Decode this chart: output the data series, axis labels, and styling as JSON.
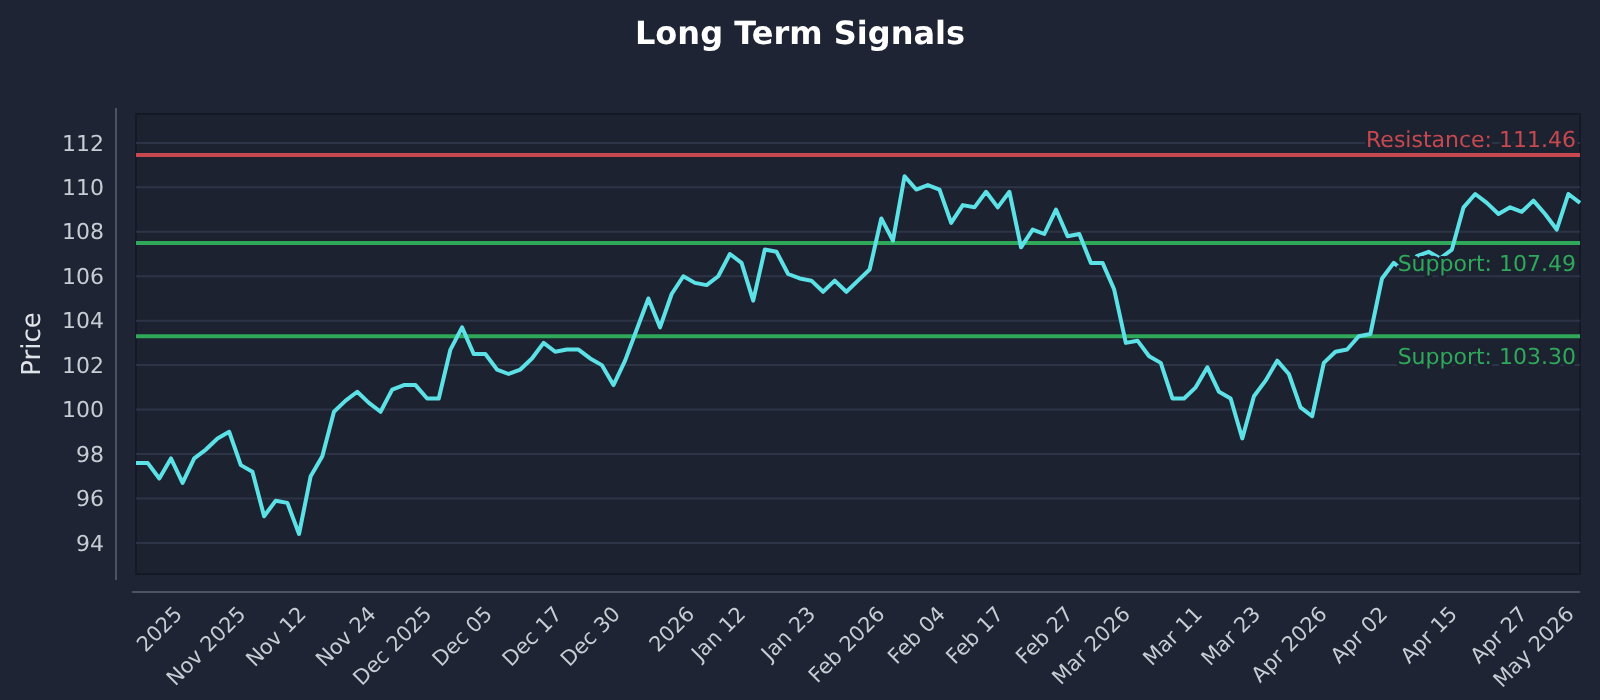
{
  "chart_data": {
    "type": "line",
    "title": "Long Term Signals",
    "ylabel": "Price",
    "categories": [
      null,
      null,
      "2025",
      null,
      null,
      null,
      "Nov 2025",
      null,
      null,
      null,
      null,
      null,
      "Nov 12",
      null,
      null,
      null,
      null,
      null,
      "Nov 24",
      null,
      null,
      null,
      "Dec 2025",
      null,
      null,
      null,
      null,
      null,
      "Dec 05",
      null,
      null,
      null,
      null,
      null,
      "Dec 17",
      null,
      null,
      null,
      null,
      "Dec 30",
      null,
      null,
      null,
      null,
      null,
      null,
      "2026",
      null,
      null,
      null,
      "Jan 12",
      null,
      null,
      null,
      null,
      null,
      "Jan 23",
      null,
      null,
      null,
      null,
      "Feb 2026",
      null,
      null,
      null,
      null,
      null,
      "Feb 04",
      null,
      null,
      null,
      null,
      "Feb 17",
      null,
      null,
      null,
      null,
      null,
      "Feb 27",
      null,
      null,
      null,
      "Mar 2026",
      null,
      null,
      null,
      null,
      null,
      null,
      "Mar 11",
      null,
      null,
      null,
      null,
      "Mar 23",
      null,
      null,
      null,
      null,
      "Apr 2026",
      null,
      null,
      null,
      null,
      null,
      "Apr 02",
      null,
      null,
      null,
      null,
      null,
      "Apr 15",
      null,
      null,
      null,
      null,
      null,
      "Apr 27",
      null,
      null,
      "May 2026",
      null,
      null,
      null,
      null
    ],
    "series": [
      {
        "color": "#5ce1e6",
        "values": [
          97.6,
          97.6,
          96.9,
          97.8,
          96.7,
          97.8,
          98.2,
          98.7,
          99.0,
          97.5,
          97.2,
          95.2,
          95.9,
          95.8,
          94.4,
          97.0,
          97.9,
          99.9,
          100.4,
          100.8,
          100.3,
          99.9,
          100.9,
          101.1,
          101.1,
          100.5,
          100.5,
          102.7,
          103.7,
          102.5,
          102.5,
          101.8,
          101.6,
          101.8,
          102.3,
          103.0,
          102.6,
          102.7,
          102.7,
          102.3,
          102.0,
          101.1,
          102.2,
          103.6,
          105.0,
          103.7,
          105.2,
          106.0,
          105.7,
          105.6,
          106.0,
          107.0,
          106.6,
          104.9,
          107.2,
          107.1,
          106.1,
          105.9,
          105.8,
          105.3,
          105.8,
          105.3,
          105.8,
          106.3,
          108.6,
          107.6,
          110.5,
          109.9,
          110.1,
          109.9,
          108.4,
          109.2,
          109.1,
          109.8,
          109.1,
          109.8,
          107.3,
          108.1,
          107.9,
          109.0,
          107.8,
          107.9,
          106.6,
          106.6,
          105.4,
          103.0,
          103.1,
          102.4,
          102.1,
          100.5,
          100.5,
          101.0,
          101.9,
          100.8,
          100.5,
          98.7,
          100.6,
          101.3,
          102.2,
          101.6,
          100.1,
          99.7,
          102.1,
          102.6,
          102.7,
          103.3,
          103.4,
          105.9,
          106.6,
          106.2,
          106.9,
          107.1,
          106.8,
          107.2,
          109.1,
          109.7,
          109.3,
          108.8,
          109.1,
          108.9,
          109.4,
          108.8,
          108.1,
          109.7,
          109.3
        ]
      }
    ],
    "ylim": [
      92.6,
      113.3
    ],
    "yticks": [
      94,
      96,
      98,
      100,
      102,
      104,
      106,
      108,
      110,
      112
    ],
    "grid": "y",
    "ref_lines": [
      {
        "axis": "y",
        "value": 111.46,
        "label": "Resistance: 111.46",
        "color": "#c8484f"
      },
      {
        "axis": "y",
        "value": 107.49,
        "label": "Support: 107.49",
        "color": "#2fa85a"
      },
      {
        "axis": "y",
        "value": 103.3,
        "label": "Support: 103.30",
        "color": "#2fa85a"
      }
    ]
  }
}
